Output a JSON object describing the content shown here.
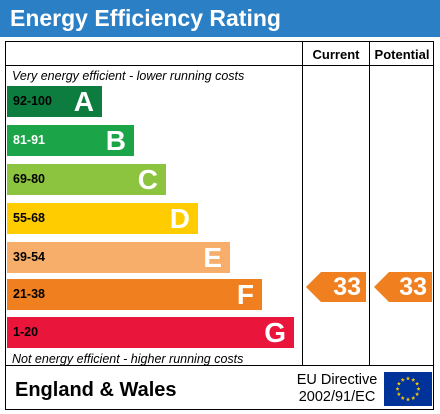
{
  "header": {
    "title": "Energy Efficiency Rating"
  },
  "columns": {
    "current": "Current",
    "potential": "Potential"
  },
  "notes": {
    "top": "Very energy efficient - lower running costs",
    "bottom": "Not energy efficient - higher running costs"
  },
  "bands": [
    {
      "range": "92-100",
      "letter": "A",
      "color": "#0c7d3f",
      "range_color": "#000000"
    },
    {
      "range": "81-91",
      "letter": "B",
      "color": "#1ba548",
      "range_color": "#ffffff"
    },
    {
      "range": "69-80",
      "letter": "C",
      "color": "#8cc43f",
      "range_color": "#000000"
    },
    {
      "range": "55-68",
      "letter": "D",
      "color": "#ffcc00",
      "range_color": "#000000"
    },
    {
      "range": "39-54",
      "letter": "E",
      "color": "#f7ae6a",
      "range_color": "#000000"
    },
    {
      "range": "21-38",
      "letter": "F",
      "color": "#f0801f",
      "range_color": "#000000"
    },
    {
      "range": "1-20",
      "letter": "G",
      "color": "#e9153b",
      "range_color": "#000000"
    }
  ],
  "ratings": {
    "current": {
      "value": "33",
      "band": "F",
      "color": "#f0801f"
    },
    "potential": {
      "value": "33",
      "band": "F",
      "color": "#f0801f"
    }
  },
  "footer": {
    "region": "England & Wales",
    "directive_line1": "EU Directive",
    "directive_line2": "2002/91/EC",
    "flag": {
      "icon": "eu-flag-icon",
      "background": "#003399",
      "stars": "#ffcc00"
    }
  }
}
